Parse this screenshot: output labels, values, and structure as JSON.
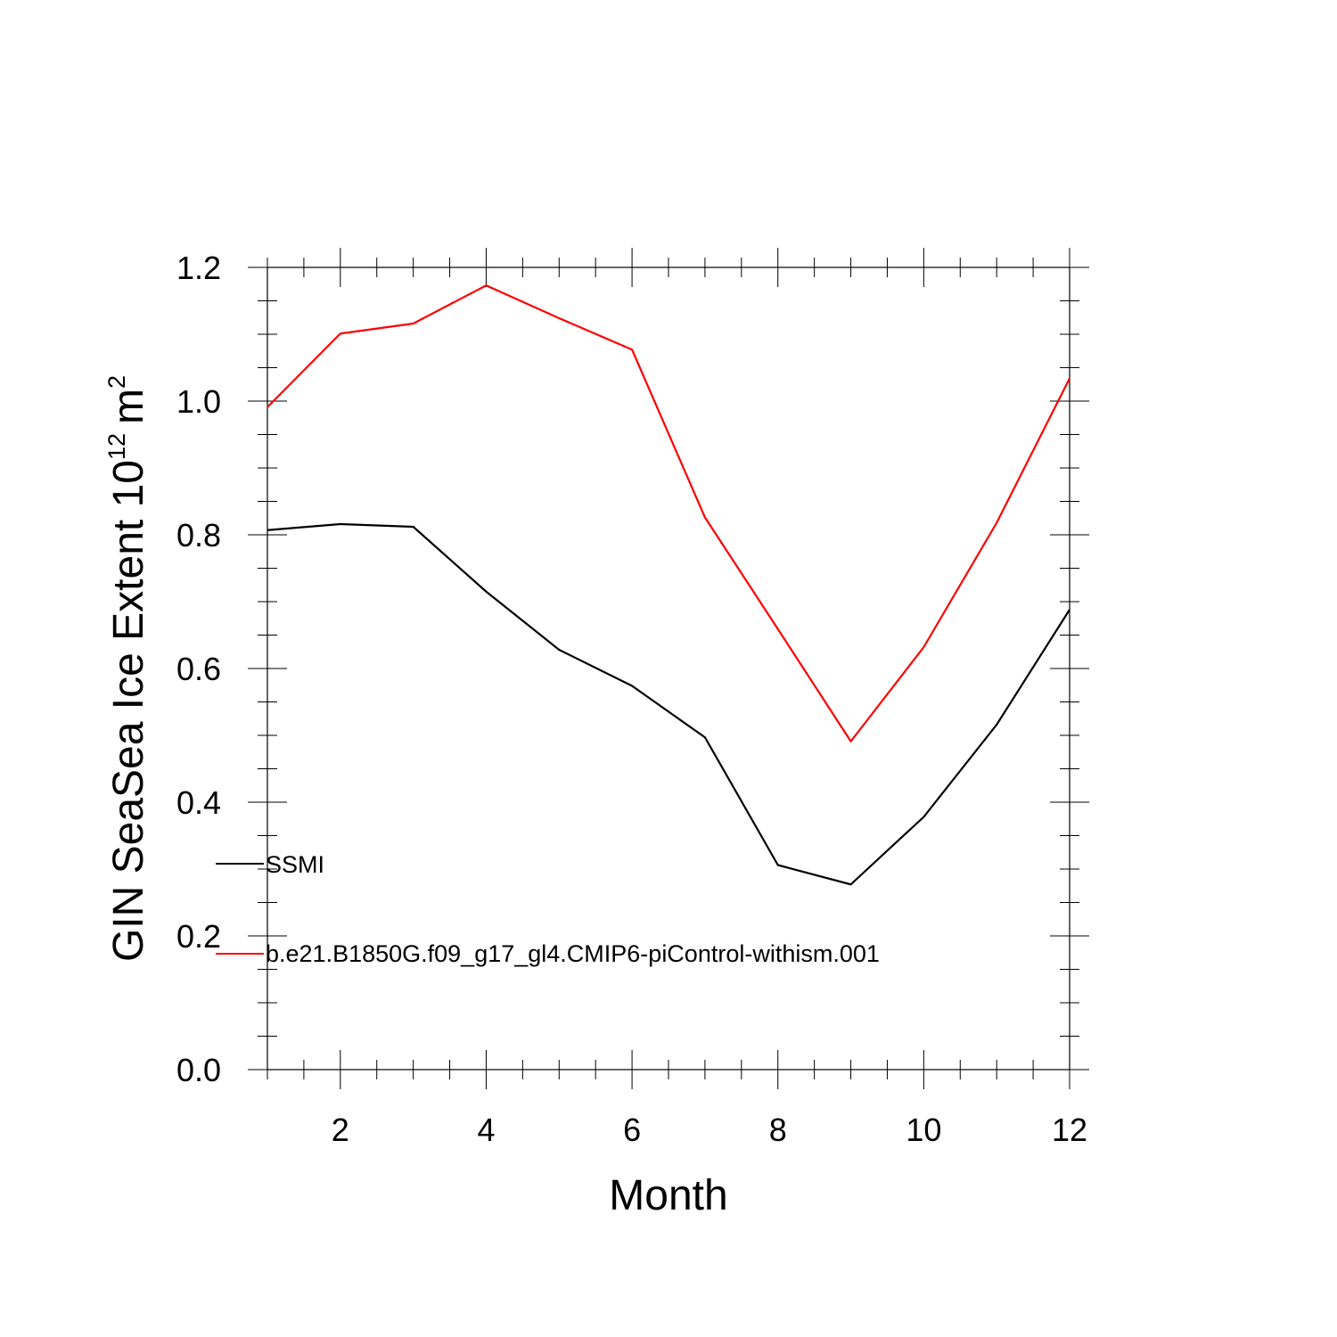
{
  "chart_data": {
    "type": "line",
    "title": "",
    "xlabel": "Month",
    "ylabel": {
      "main": "GIN SeaSea Ice Extent 10",
      "exponent": "12",
      "unit": "m",
      "unit_exponent": "2"
    },
    "xlim": [
      1,
      12
    ],
    "ylim": [
      0.0,
      1.2
    ],
    "x_ticks": [
      2,
      4,
      6,
      8,
      10,
      12
    ],
    "x_tick_labels": [
      "2",
      "4",
      "6",
      "8",
      "10",
      "12"
    ],
    "y_ticks": [
      0.0,
      0.2,
      0.4,
      0.6,
      0.8,
      1.0,
      1.2
    ],
    "y_tick_labels": [
      "0.0",
      "0.2",
      "0.4",
      "0.6",
      "0.8",
      "1.0",
      "1.2"
    ],
    "grid": false,
    "legend_position": "lower-left inside",
    "x": [
      1,
      2,
      3,
      4,
      5,
      6,
      7,
      8,
      9,
      10,
      11,
      12
    ],
    "series": [
      {
        "name": "SSMI",
        "color": "#000000",
        "values": [
          0.807,
          0.816,
          0.812,
          0.715,
          0.628,
          0.574,
          0.497,
          0.306,
          0.277,
          0.378,
          0.516,
          0.688
        ]
      },
      {
        "name": "b.e21.B1850G.f09_g17_gl4.CMIP6-piControl-withism.001",
        "color": "#ff0000",
        "values": [
          0.991,
          1.101,
          1.116,
          1.173,
          1.124,
          1.077,
          0.826,
          0.659,
          0.491,
          0.632,
          0.818,
          1.034
        ]
      }
    ]
  }
}
